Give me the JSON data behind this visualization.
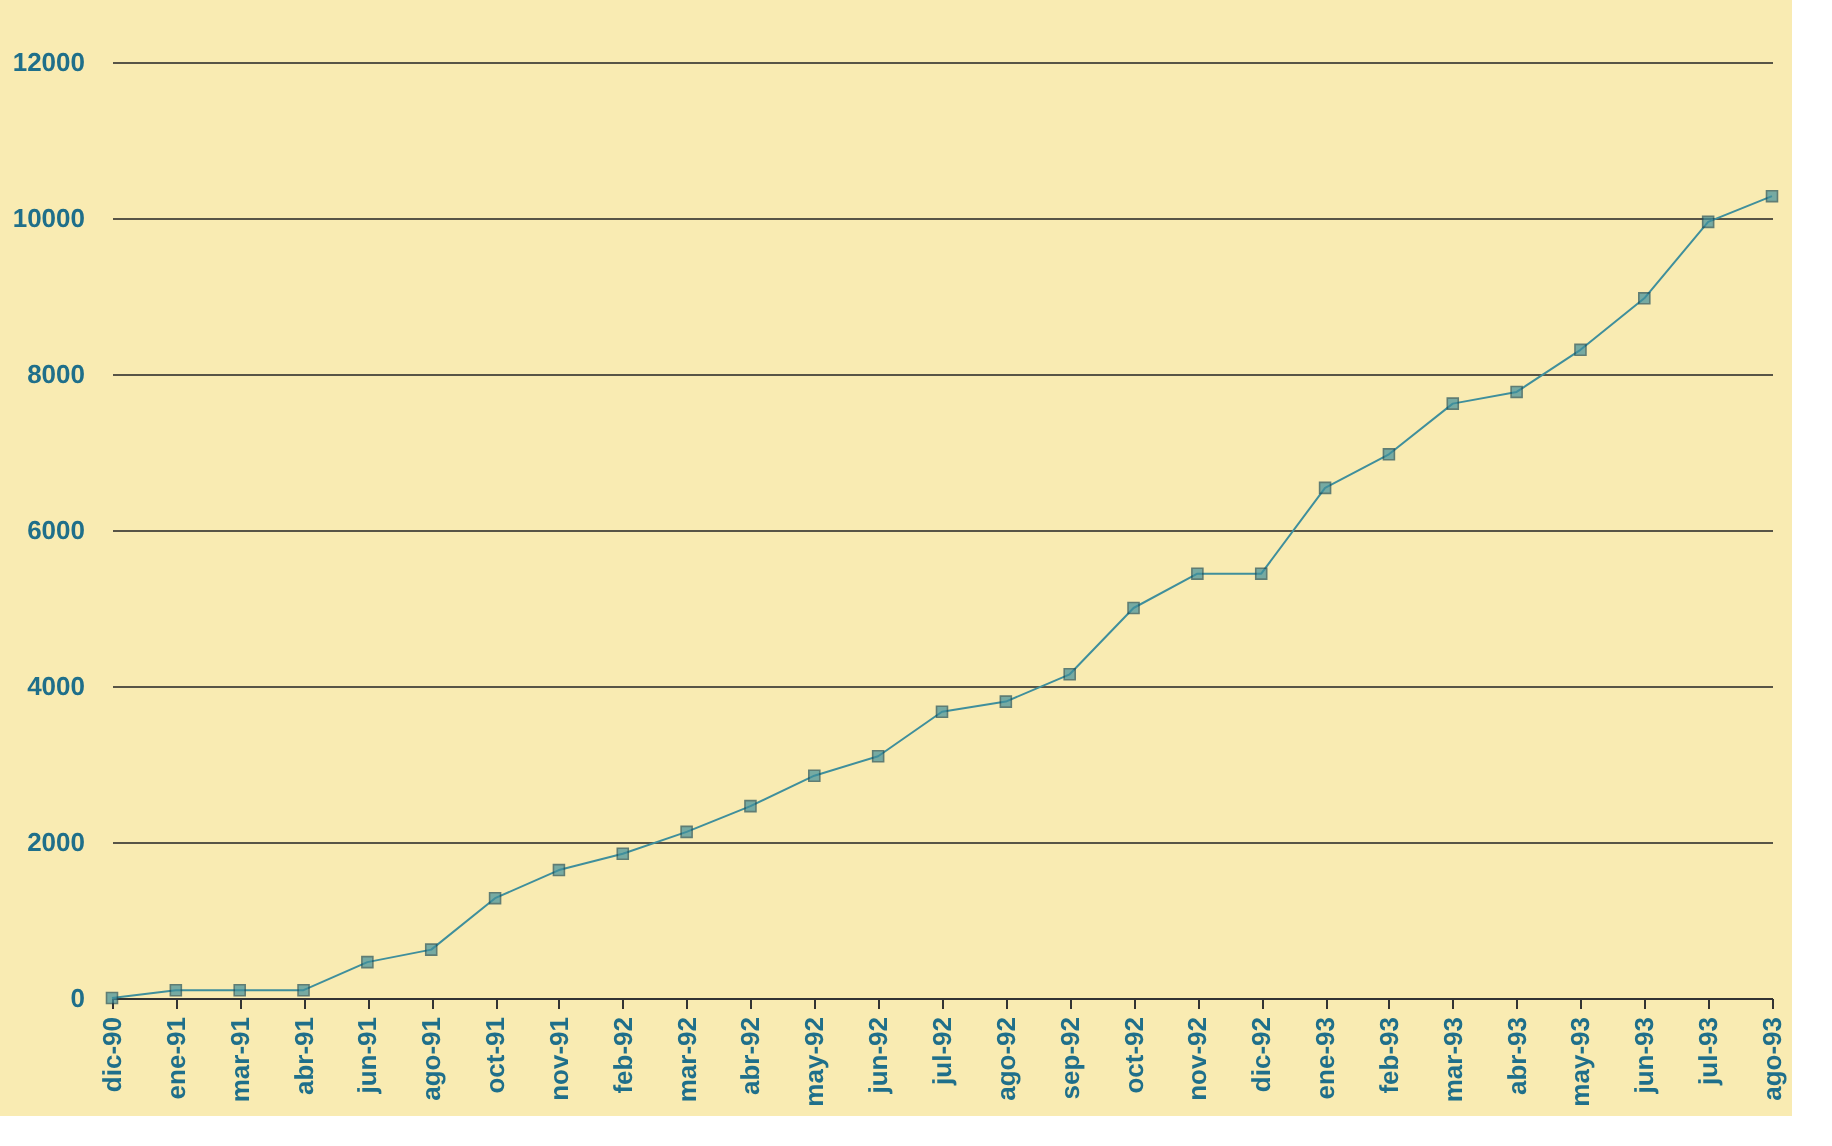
{
  "chart_data": {
    "type": "line",
    "categories": [
      "dic-90",
      "ene-91",
      "mar-91",
      "abr-91",
      "jun-91",
      "ago-91",
      "oct-91",
      "nov-91",
      "feb-92",
      "mar-92",
      "abr-92",
      "may-92",
      "jun-92",
      "jul-92",
      "ago-92",
      "sep-92",
      "oct-92",
      "nov-92",
      "dic-92",
      "ene-93",
      "feb-93",
      "mar-93",
      "abr-93",
      "may-93",
      "jun-93",
      "jul-93",
      "ago-93"
    ],
    "series": [
      {
        "color": "#3f8f9c",
        "values": [
          0,
          100,
          100,
          100,
          460,
          620,
          1280,
          1640,
          1850,
          2130,
          2460,
          2850,
          3100,
          3670,
          3800,
          4150,
          5000,
          5440,
          5440,
          6540,
          6970,
          7620,
          7770,
          8310,
          8970,
          9950,
          10280
        ]
      }
    ],
    "ylim": [
      0,
      12000
    ],
    "yticks": [
      0,
      2000,
      4000,
      6000,
      8000,
      10000,
      12000
    ],
    "grid": "y",
    "marker": "square",
    "line_style": "solid",
    "legend": false
  }
}
